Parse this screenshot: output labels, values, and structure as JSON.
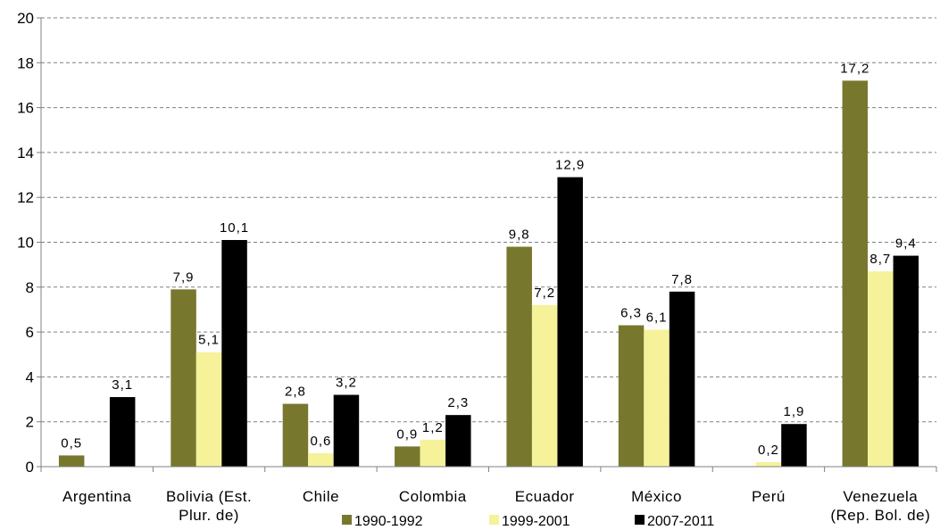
{
  "chart_data": {
    "type": "bar",
    "categories": [
      [
        "Argentina"
      ],
      [
        "Bolivia (Est.",
        "Plur. de)"
      ],
      [
        "Chile"
      ],
      [
        "Colombia"
      ],
      [
        "Ecuador"
      ],
      [
        "México"
      ],
      [
        "Perú"
      ],
      [
        "Venezuela",
        "(Rep. Bol. de)"
      ]
    ],
    "series": [
      {
        "name": "1990-1992",
        "color": "#77782e",
        "values": [
          0.5,
          7.9,
          2.8,
          0.9,
          9.8,
          6.3,
          null,
          17.2
        ],
        "labels": [
          "0,5",
          "7,9",
          "2,8",
          "0,9",
          "9,8",
          "6,3",
          "",
          "17,2"
        ]
      },
      {
        "name": "1999-2001",
        "color": "#f6f29a",
        "values": [
          null,
          5.1,
          0.6,
          1.2,
          7.2,
          6.1,
          0.2,
          8.7
        ],
        "labels": [
          "",
          "5,1",
          "0,6",
          "1,2",
          "7,2",
          "6,1",
          "0,2",
          "8,7"
        ]
      },
      {
        "name": "2007-2011",
        "color": "#000000",
        "values": [
          3.1,
          10.1,
          3.2,
          2.3,
          12.9,
          7.8,
          1.9,
          9.4
        ],
        "labels": [
          "3,1",
          "10,1",
          "3,2",
          "2,3",
          "12,9",
          "7,8",
          "1,9",
          "9,4"
        ]
      }
    ],
    "yticks": [
      "0",
      "2",
      "4",
      "6",
      "8",
      "10",
      "12",
      "14",
      "16",
      "18",
      "20"
    ],
    "ylim": [
      0,
      20
    ],
    "grid": "dashed horizontal",
    "legend_position": "bottom"
  }
}
